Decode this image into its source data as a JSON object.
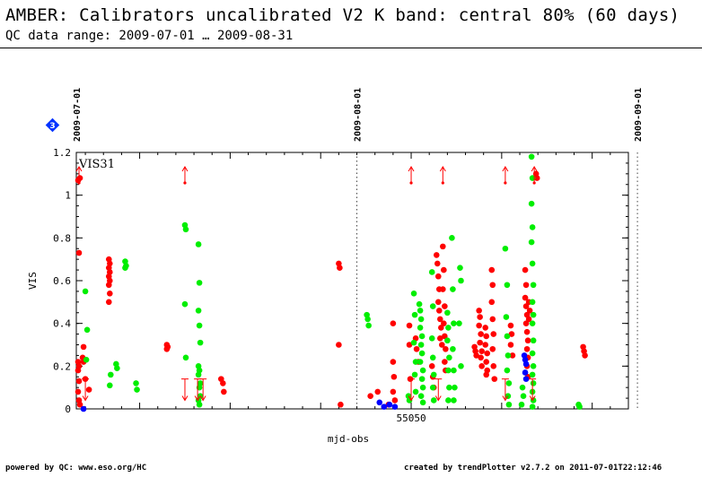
{
  "header": {
    "title": "AMBER: Calibrators uncalibrated V2 K band: central 80% (60 days)",
    "subtitle": "QC data range: 2009-07-01 … 2009-08-31"
  },
  "badge": {
    "label": "3"
  },
  "footer": {
    "left": "powered by QC: www.eso.org/HC",
    "right": "created by trendPlotter v2.7.2 on 2011-07-01T22:12:46"
  },
  "colors": {
    "red": "#ff0000",
    "green": "#00ee00",
    "blue": "#0000ff",
    "badge": "#0033ff"
  },
  "chart_data": {
    "type": "scatter",
    "panel_label": "VIS31",
    "xlabel": "mjd-obs",
    "ylabel": "VIS",
    "xlim": [
      55013,
      55074
    ],
    "ylim": [
      0,
      1.2
    ],
    "yticks": [
      0,
      0.2,
      0.4,
      0.6,
      0.8,
      1,
      1.2
    ],
    "yticklabels": [
      "0",
      "0.2",
      "0.4",
      "0.6",
      "0.8",
      "1",
      "1.2"
    ],
    "xticks": [
      55050
    ],
    "xticklabels": [
      "55050"
    ],
    "date_markers": [
      {
        "x": 55013.0,
        "label": "2009-07-01"
      },
      {
        "x": 55044.0,
        "label": "2009-08-01"
      },
      {
        "x": 55075.0,
        "label": "2009-09-01"
      }
    ],
    "series": [
      {
        "color": "red",
        "points": [
          [
            55013.4,
            1.08
          ],
          [
            55013.2,
            1.07
          ],
          [
            55013.3,
            0.73
          ],
          [
            55013.2,
            0.22
          ],
          [
            55013.3,
            0.2
          ],
          [
            55013.2,
            0.18
          ],
          [
            55013.3,
            0.13
          ],
          [
            55013.2,
            0.08
          ],
          [
            55013.3,
            0.04
          ],
          [
            55013.4,
            0.02
          ],
          [
            55013.8,
            0.29
          ],
          [
            55013.7,
            0.24
          ],
          [
            55013.8,
            0.22
          ],
          [
            55014,
            0.14
          ],
          [
            55014.4,
            0.09
          ],
          [
            55016.6,
            0.7
          ],
          [
            55016.7,
            0.68
          ],
          [
            55016.6,
            0.66
          ],
          [
            55016.7,
            0.64
          ],
          [
            55016.6,
            0.62
          ],
          [
            55016.7,
            0.6
          ],
          [
            55016.6,
            0.58
          ],
          [
            55016.7,
            0.54
          ],
          [
            55016.6,
            0.5
          ],
          [
            55023.0,
            0.3
          ],
          [
            55023.0,
            0.28
          ],
          [
            55023.1,
            0.29
          ],
          [
            55029.0,
            0.14
          ],
          [
            55029.2,
            0.12
          ],
          [
            55029.3,
            0.08
          ],
          [
            55042.0,
            0.68
          ],
          [
            55042.1,
            0.66
          ],
          [
            55042.0,
            0.3
          ],
          [
            55042.2,
            0.02
          ],
          [
            55045.5,
            0.06
          ],
          [
            55046.3,
            0.08
          ],
          [
            55047.5,
            0.02
          ],
          [
            55048.0,
            0.4
          ],
          [
            55048.0,
            0.22
          ],
          [
            55048.1,
            0.15
          ],
          [
            55048.0,
            0.08
          ],
          [
            55048.2,
            0.04
          ],
          [
            55049.8,
            0.39
          ],
          [
            55049.8,
            0.3
          ],
          [
            55049.9,
            0.14
          ],
          [
            55050.5,
            0.33
          ],
          [
            55050.6,
            0.28
          ],
          [
            55050.8,
            0.22
          ],
          [
            55052.3,
            0.2
          ],
          [
            55052.4,
            0.15
          ],
          [
            55052.5,
            0.1
          ],
          [
            55052.8,
            0.72
          ],
          [
            55052.9,
            0.68
          ],
          [
            55053.0,
            0.62
          ],
          [
            55053.1,
            0.56
          ],
          [
            55053.0,
            0.5
          ],
          [
            55053.1,
            0.46
          ],
          [
            55053.2,
            0.42
          ],
          [
            55053.3,
            0.38
          ],
          [
            55053.2,
            0.33
          ],
          [
            55053.4,
            0.3
          ],
          [
            55053.5,
            0.76
          ],
          [
            55053.6,
            0.65
          ],
          [
            55053.5,
            0.56
          ],
          [
            55053.7,
            0.48
          ],
          [
            55053.6,
            0.4
          ],
          [
            55053.7,
            0.34
          ],
          [
            55053.8,
            0.28
          ],
          [
            55053.7,
            0.22
          ],
          [
            55053.8,
            0.18
          ],
          [
            55057.0,
            0.29
          ],
          [
            55057.1,
            0.27
          ],
          [
            55057.2,
            0.25
          ],
          [
            55057.5,
            0.46
          ],
          [
            55057.6,
            0.43
          ],
          [
            55057.5,
            0.39
          ],
          [
            55057.7,
            0.35
          ],
          [
            55057.6,
            0.31
          ],
          [
            55057.8,
            0.27
          ],
          [
            55057.7,
            0.24
          ],
          [
            55057.8,
            0.2
          ],
          [
            55058.2,
            0.38
          ],
          [
            55058.3,
            0.34
          ],
          [
            55058.2,
            0.3
          ],
          [
            55058.4,
            0.26
          ],
          [
            55058.3,
            0.22
          ],
          [
            55058.4,
            0.18
          ],
          [
            55058.3,
            0.16
          ],
          [
            55058.9,
            0.65
          ],
          [
            55059.0,
            0.58
          ],
          [
            55058.9,
            0.5
          ],
          [
            55059.0,
            0.42
          ],
          [
            55059.1,
            0.35
          ],
          [
            55059.0,
            0.28
          ],
          [
            55059.1,
            0.2
          ],
          [
            55059.2,
            0.14
          ],
          [
            55061.0,
            0.39
          ],
          [
            55061.1,
            0.35
          ],
          [
            55061.0,
            0.3
          ],
          [
            55061.2,
            0.25
          ],
          [
            55062.6,
            0.65
          ],
          [
            55062.7,
            0.58
          ],
          [
            55062.6,
            0.52
          ],
          [
            55062.7,
            0.48
          ],
          [
            55062.8,
            0.44
          ],
          [
            55062.7,
            0.4
          ],
          [
            55062.8,
            0.36
          ],
          [
            55062.9,
            0.32
          ],
          [
            55062.8,
            0.28
          ],
          [
            55062.9,
            0.24
          ],
          [
            55062.8,
            0.2
          ],
          [
            55062.9,
            0.15
          ],
          [
            55063.0,
            0.5
          ],
          [
            55063.1,
            0.46
          ],
          [
            55063.0,
            0.42
          ],
          [
            55063.8,
            1.1
          ],
          [
            55063.9,
            1.08
          ],
          [
            55069.0,
            0.29
          ],
          [
            55069.1,
            0.27
          ],
          [
            55069.2,
            0.25
          ]
        ]
      },
      {
        "color": "green",
        "points": [
          [
            55014.0,
            0.55
          ],
          [
            55014.2,
            0.37
          ],
          [
            55014.1,
            0.23
          ],
          [
            55016.8,
            0.16
          ],
          [
            55016.7,
            0.11
          ],
          [
            55017.4,
            0.21
          ],
          [
            55017.5,
            0.19
          ],
          [
            55018.4,
            0.69
          ],
          [
            55018.5,
            0.67
          ],
          [
            55018.4,
            0.66
          ],
          [
            55019.6,
            0.12
          ],
          [
            55019.7,
            0.09
          ],
          [
            55025.0,
            0.86
          ],
          [
            55025.1,
            0.84
          ],
          [
            55025.0,
            0.49
          ],
          [
            55025.1,
            0.24
          ],
          [
            55026.5,
            0.77
          ],
          [
            55026.6,
            0.59
          ],
          [
            55026.5,
            0.46
          ],
          [
            55026.6,
            0.39
          ],
          [
            55026.7,
            0.31
          ],
          [
            55026.5,
            0.2
          ],
          [
            55026.6,
            0.18
          ],
          [
            55026.5,
            0.16
          ],
          [
            55026.7,
            0.12
          ],
          [
            55026.6,
            0.1
          ],
          [
            55026.7,
            0.06
          ],
          [
            55026.5,
            0.04
          ],
          [
            55026.6,
            0.02
          ],
          [
            55045.1,
            0.44
          ],
          [
            55045.2,
            0.42
          ],
          [
            55045.3,
            0.39
          ],
          [
            55049.7,
            0.06
          ],
          [
            55049.8,
            0.04
          ],
          [
            55050.3,
            0.54
          ],
          [
            55050.4,
            0.44
          ],
          [
            55050.3,
            0.31
          ],
          [
            55050.5,
            0.22
          ],
          [
            55050.4,
            0.16
          ],
          [
            55050.5,
            0.08
          ],
          [
            55050.9,
            0.49
          ],
          [
            55051.0,
            0.46
          ],
          [
            55051.1,
            0.42
          ],
          [
            55051.0,
            0.38
          ],
          [
            55051.2,
            0.34
          ],
          [
            55051.1,
            0.3
          ],
          [
            55051.2,
            0.26
          ],
          [
            55051.0,
            0.22
          ],
          [
            55051.3,
            0.18
          ],
          [
            55051.2,
            0.14
          ],
          [
            55051.3,
            0.1
          ],
          [
            55051.1,
            0.06
          ],
          [
            55051.3,
            0.03
          ],
          [
            55052.3,
            0.64
          ],
          [
            55052.4,
            0.48
          ],
          [
            55052.3,
            0.33
          ],
          [
            55052.4,
            0.24
          ],
          [
            55052.5,
            0.16
          ],
          [
            55052.4,
            0.1
          ],
          [
            55052.5,
            0.04
          ],
          [
            55054.0,
            0.45
          ],
          [
            55054.1,
            0.38
          ],
          [
            55054.0,
            0.32
          ],
          [
            55054.2,
            0.24
          ],
          [
            55054.1,
            0.18
          ],
          [
            55054.2,
            0.1
          ],
          [
            55054.1,
            0.04
          ],
          [
            55054.5,
            0.8
          ],
          [
            55054.6,
            0.56
          ],
          [
            55054.7,
            0.4
          ],
          [
            55054.6,
            0.28
          ],
          [
            55054.7,
            0.18
          ],
          [
            55054.8,
            0.1
          ],
          [
            55054.7,
            0.04
          ],
          [
            55055.4,
            0.66
          ],
          [
            55055.5,
            0.6
          ],
          [
            55055.3,
            0.4
          ],
          [
            55055.5,
            0.2
          ],
          [
            55060.4,
            0.75
          ],
          [
            55060.6,
            0.58
          ],
          [
            55060.5,
            0.43
          ],
          [
            55060.6,
            0.34
          ],
          [
            55060.7,
            0.25
          ],
          [
            55060.6,
            0.18
          ],
          [
            55060.8,
            0.12
          ],
          [
            55060.7,
            0.06
          ],
          [
            55060.8,
            0.02
          ],
          [
            55062.3,
            0.1
          ],
          [
            55062.4,
            0.06
          ],
          [
            55062.2,
            0.02
          ],
          [
            55063.3,
            1.18
          ],
          [
            55063.4,
            1.08
          ],
          [
            55063.3,
            0.96
          ],
          [
            55063.4,
            0.85
          ],
          [
            55063.3,
            0.78
          ],
          [
            55063.4,
            0.68
          ],
          [
            55063.5,
            0.58
          ],
          [
            55063.4,
            0.5
          ],
          [
            55063.5,
            0.44
          ],
          [
            55063.4,
            0.4
          ],
          [
            55063.5,
            0.32
          ],
          [
            55063.4,
            0.26
          ],
          [
            55063.5,
            0.2
          ],
          [
            55063.4,
            0.16
          ],
          [
            55063.5,
            0.12
          ],
          [
            55063.4,
            0.08
          ],
          [
            55063.5,
            0.04
          ],
          [
            55063.4,
            0.01
          ],
          [
            55068.5,
            0.02
          ],
          [
            55068.6,
            0.01
          ]
        ]
      },
      {
        "color": "blue",
        "points": [
          [
            55013.8,
            0.0
          ],
          [
            55046.5,
            0.03
          ],
          [
            55047.0,
            0.01
          ],
          [
            55047.6,
            0.02
          ],
          [
            55048.2,
            0.01
          ],
          [
            55062.5,
            0.25
          ],
          [
            55062.6,
            0.23
          ],
          [
            55062.7,
            0.21
          ],
          [
            55062.6,
            0.17
          ],
          [
            55062.7,
            0.14
          ]
        ]
      }
    ],
    "upper_limit_arrows": [
      [
        55013.3,
        1.2
      ],
      [
        55025.0,
        1.2
      ],
      [
        55050.0,
        1.2
      ],
      [
        55053.5,
        1.2
      ],
      [
        55060.4,
        1.2
      ],
      [
        55063.6,
        1.2
      ]
    ],
    "lower_limit_arrows": [
      [
        55014.0,
        0.14
      ],
      [
        55025.0,
        0.14
      ],
      [
        55026.4,
        0.14
      ],
      [
        55027.0,
        0.14
      ],
      [
        55050.0,
        0.14
      ],
      [
        55053.0,
        0.14
      ],
      [
        55060.4,
        0.14
      ],
      [
        55063.4,
        0.14
      ]
    ]
  }
}
